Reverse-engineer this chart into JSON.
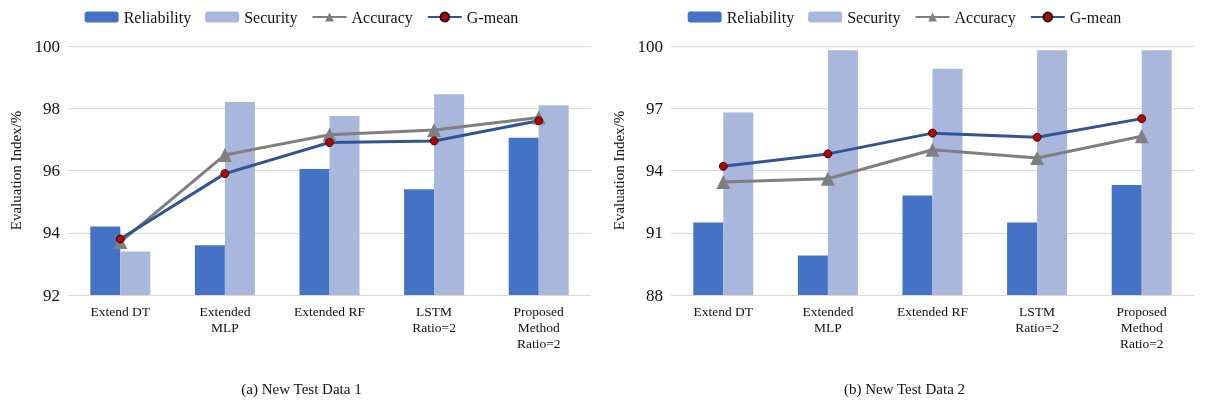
{
  "chart_data": [
    {
      "type": "bar",
      "title": "(a) New Test Data 1",
      "ylabel": "Evaluation Index/%",
      "categories": [
        "Extend DT",
        "Extended\nMLP",
        "Extended RF",
        "LSTM\nRatio=2",
        "Proposed\nMethod\nRatio=2"
      ],
      "series": [
        {
          "name": "Reliability",
          "color": "#4472c4",
          "values": [
            94.2,
            93.6,
            96.05,
            95.4,
            97.05
          ]
        },
        {
          "name": "Security",
          "color": "#a9b7dc",
          "values": [
            93.4,
            98.2,
            97.75,
            98.45,
            98.1
          ]
        },
        {
          "name": "Accuracy",
          "type": "line",
          "marker": "triangle",
          "color": "#7f7f7f",
          "values": [
            93.7,
            96.5,
            97.15,
            97.3,
            97.7
          ]
        },
        {
          "name": "G-mean",
          "type": "line",
          "marker": "circle",
          "color": "#2f5597",
          "values": [
            93.8,
            95.9,
            96.9,
            96.95,
            97.6
          ]
        }
      ],
      "ylim": [
        92,
        100
      ],
      "yticks": [
        92,
        94,
        96,
        98,
        100
      ],
      "grid": "y",
      "legend": "top"
    },
    {
      "type": "bar",
      "title": "(b) New Test Data 2",
      "ylabel": "Evaluation Index/%",
      "categories": [
        "Extend DT",
        "Extended\nMLP",
        "Extended RF",
        "LSTM\nRatio=2",
        "Proposed\nMethod\nRatio=2"
      ],
      "series": [
        {
          "name": "Reliability",
          "color": "#4472c4",
          "values": [
            91.5,
            89.9,
            92.8,
            91.5,
            93.3
          ]
        },
        {
          "name": "Security",
          "color": "#a9b7dc",
          "values": [
            96.8,
            99.8,
            98.9,
            99.8,
            99.8
          ]
        },
        {
          "name": "Accuracy",
          "type": "line",
          "marker": "triangle",
          "color": "#7f7f7f",
          "values": [
            93.45,
            93.6,
            95.0,
            94.6,
            95.65
          ]
        },
        {
          "name": "G-mean",
          "type": "line",
          "marker": "circle",
          "color": "#2f5597",
          "values": [
            94.2,
            94.8,
            95.8,
            95.6,
            96.5
          ]
        }
      ],
      "ylim": [
        88,
        100
      ],
      "yticks": [
        88,
        91,
        94,
        97,
        100
      ],
      "grid": "y",
      "legend": "top"
    }
  ]
}
